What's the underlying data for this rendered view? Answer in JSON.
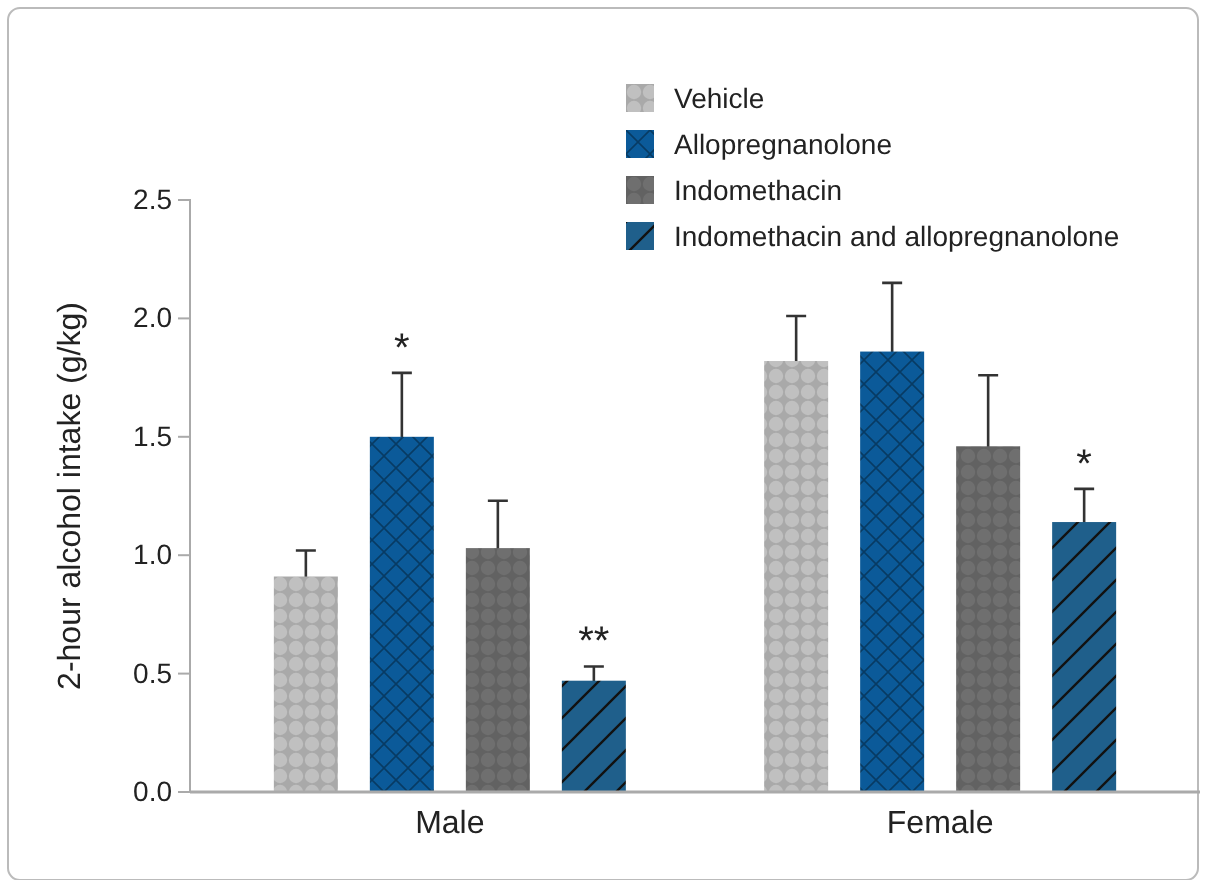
{
  "chart_data": {
    "type": "bar",
    "ylabel": "2-hour alcohol intake (g/kg)",
    "categories": [
      "Male",
      "Female"
    ],
    "series": [
      {
        "name": "Vehicle",
        "color": "#c0c0c0",
        "values": [
          0.91,
          1.82
        ],
        "errors": [
          0.11,
          0.19
        ]
      },
      {
        "name": "Allopregnanolone",
        "color": "#0b5a99",
        "values": [
          1.5,
          1.86
        ],
        "errors": [
          0.27,
          0.29
        ]
      },
      {
        "name": "Indomethacin",
        "color": "#6f6f6f",
        "values": [
          1.03,
          1.46
        ],
        "errors": [
          0.2,
          0.3
        ]
      },
      {
        "name": "Indomethacin and allopregnanolone",
        "color": "#1f5f8b",
        "values": [
          0.47,
          1.14
        ],
        "errors": [
          0.06,
          0.14
        ]
      }
    ],
    "ylim": [
      0,
      2.5
    ],
    "yticks": [
      {
        "value": 0,
        "label": "0.0"
      },
      {
        "value": 0.5,
        "label": "0.5"
      },
      {
        "value": 1,
        "label": "1.0"
      },
      {
        "value": 1.5,
        "label": "1.5"
      },
      {
        "value": 2,
        "label": "2.0"
      },
      {
        "value": 2.5,
        "label": "2.5"
      }
    ],
    "grid": false,
    "legend": "top right",
    "annotations": [
      "*",
      "**",
      "*"
    ]
  }
}
